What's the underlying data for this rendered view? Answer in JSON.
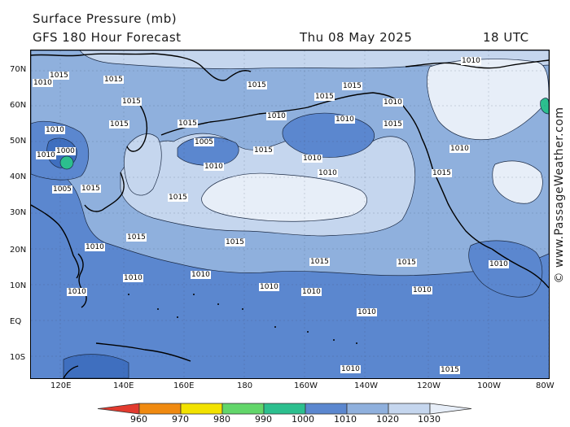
{
  "header": {
    "title": "Surface Pressure (mb)",
    "subtitle": "GFS 180 Hour Forecast",
    "date": "Thu 08 May 2025",
    "time": "18 UTC"
  },
  "watermark": "© www.PassageWeather.com",
  "map": {
    "lat_labels": [
      "70N",
      "60N",
      "50N",
      "40N",
      "30N",
      "20N",
      "10N",
      "EQ",
      "10S"
    ],
    "lon_labels": [
      "120E",
      "140E",
      "160E",
      "180",
      "160W",
      "140W",
      "120W",
      "100W",
      "80W"
    ],
    "pressure_labels": [
      "1015",
      "1015",
      "1015",
      "1015",
      "1015",
      "1015",
      "1015",
      "1015",
      "1015",
      "1015",
      "1010",
      "1010",
      "1010",
      "1010",
      "1010",
      "1010",
      "1010",
      "1010",
      "1010",
      "1010",
      "1010",
      "1010",
      "1010",
      "1010",
      "1010",
      "1010",
      "1010",
      "1005",
      "1005",
      "1000",
      "1015",
      "1015",
      "1015",
      "1015",
      "1015",
      "1015",
      "1015",
      "1015",
      "1010",
      "1010",
      "1010",
      "1010"
    ],
    "colors": {
      "ocean_1010": "#5b87cf",
      "ocean_1015": "#8fb0dd",
      "ocean_1020": "#c5d6ee",
      "ocean_1030": "#e7eef8"
    }
  },
  "legend": {
    "labels": [
      "960",
      "970",
      "980",
      "990",
      "1000",
      "1010",
      "1020",
      "1030"
    ],
    "colors": [
      "#e23a2e",
      "#f08a10",
      "#f2e200",
      "#62d66a",
      "#2cbf8e",
      "#5b87cf",
      "#8fb0dd",
      "#c5d6ee",
      "#e7eef8"
    ]
  }
}
